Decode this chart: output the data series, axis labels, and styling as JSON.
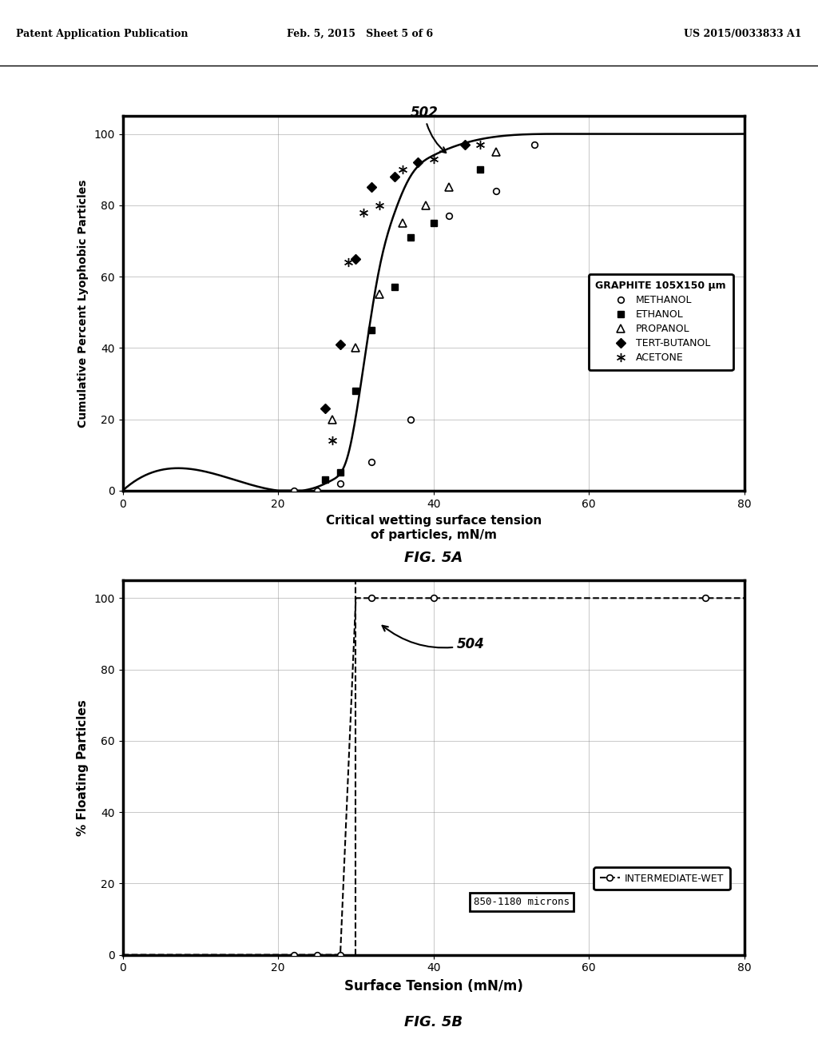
{
  "header_left": "Patent Application Publication",
  "header_mid": "Feb. 5, 2015   Sheet 5 of 6",
  "header_right": "US 2015/0033833 A1",
  "fig5a": {
    "title_label": "502",
    "xlabel": "Critical wetting surface tension\nof particles, mN/m",
    "ylabel": "Cumulative Percent Lyophobic Particles",
    "xlim": [
      0,
      80
    ],
    "ylim": [
      0,
      105
    ],
    "xticks": [
      0,
      20,
      40,
      60,
      80
    ],
    "yticks": [
      0,
      20,
      40,
      60,
      80,
      100
    ],
    "legend_title": "GRAPHITE 105X150 μm",
    "methanol_x": [
      22,
      25,
      28,
      32,
      37,
      42,
      48,
      53
    ],
    "methanol_y": [
      0,
      0,
      2,
      8,
      20,
      77,
      84,
      97
    ],
    "ethanol_x": [
      26,
      28,
      30,
      32,
      35,
      37,
      40,
      46
    ],
    "ethanol_y": [
      3,
      5,
      28,
      45,
      57,
      71,
      75,
      90
    ],
    "propanol_x": [
      27,
      30,
      33,
      36,
      39,
      42,
      48
    ],
    "propanol_y": [
      20,
      40,
      55,
      75,
      80,
      85,
      95
    ],
    "tertbutanol_x": [
      26,
      28,
      30,
      32,
      35,
      38,
      44
    ],
    "tertbutanol_y": [
      23,
      41,
      65,
      85,
      88,
      92,
      97
    ],
    "acetone_x": [
      27,
      29,
      31,
      33,
      36,
      40,
      46
    ],
    "acetone_y": [
      14,
      64,
      78,
      80,
      90,
      93,
      97
    ],
    "curve_x": [
      0,
      20,
      25,
      27,
      29,
      31,
      33,
      35,
      37,
      40,
      45,
      55,
      70,
      80
    ],
    "curve_y": [
      0,
      0,
      1,
      3,
      10,
      35,
      62,
      78,
      88,
      94,
      98,
      100,
      100,
      100
    ],
    "figcaption": "FIG. 5A"
  },
  "fig5b": {
    "title_label": "504",
    "xlabel": "Surface Tension (mN/m)",
    "ylabel": "% Floating Particles",
    "xlim": [
      0,
      80
    ],
    "ylim": [
      0,
      105
    ],
    "xticks": [
      0,
      20,
      40,
      60,
      80
    ],
    "yticks": [
      0,
      20,
      40,
      60,
      80,
      100
    ],
    "legend_label": "INTERMEDIATE-WET",
    "legend_sublabel": "850-1180 microns",
    "dashed_x": 30,
    "line_x": [
      0,
      22,
      25,
      28,
      30,
      32,
      35,
      80
    ],
    "line_y": [
      0,
      0,
      0,
      0,
      100,
      100,
      100,
      100
    ],
    "markers_x": [
      22,
      25,
      28,
      32,
      40,
      75
    ],
    "markers_y": [
      0,
      0,
      0,
      100,
      100,
      100
    ],
    "figcaption": "FIG. 5B"
  }
}
